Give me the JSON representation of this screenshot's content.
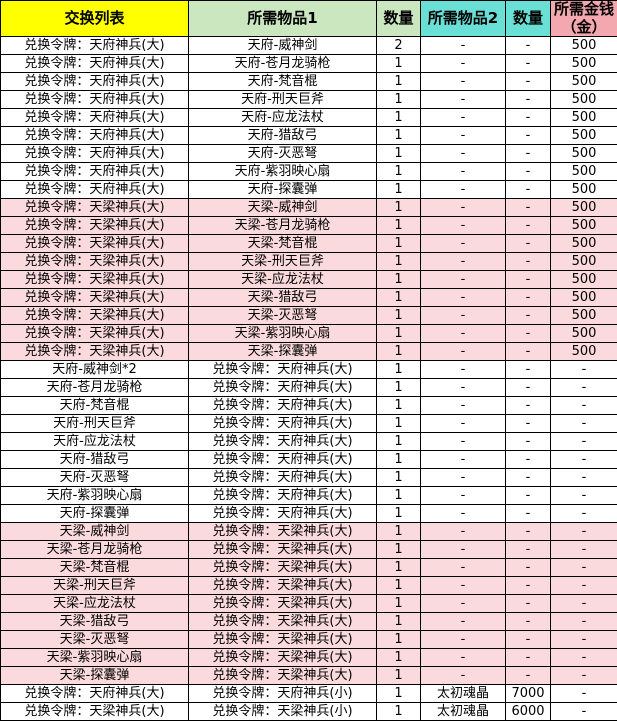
{
  "table": {
    "title": "item-exchange-list",
    "colors": {
      "header_yellow": "#FFFF00",
      "header_green": "#CBE7C0",
      "header_cyan": "#6ADFD6",
      "header_pink": "#F3A7AE",
      "row_pink": "#FBDADD",
      "row_white": "#FFFFFF",
      "grid_border": "#000000",
      "text": "#000000"
    },
    "headers": [
      {
        "label": "交换列表",
        "bg": "header_yellow"
      },
      {
        "label": "所需物品1",
        "bg": "header_green"
      },
      {
        "label": "数量",
        "bg": "header_green"
      },
      {
        "label": "所需物品2",
        "bg": "header_cyan"
      },
      {
        "label": "数量",
        "bg": "header_cyan"
      },
      {
        "label": "所需金钱（金）",
        "bg": "header_pink"
      }
    ],
    "rows": [
      {
        "cells": [
          "兑换令牌：天府神兵(大)",
          "天府-威神剑",
          "2",
          "-",
          "-",
          "500"
        ],
        "highlight": false
      },
      {
        "cells": [
          "兑换令牌：天府神兵(大)",
          "天府-苍月龙骑枪",
          "1",
          "-",
          "-",
          "500"
        ],
        "highlight": false
      },
      {
        "cells": [
          "兑换令牌：天府神兵(大)",
          "天府-梵音棍",
          "1",
          "-",
          "-",
          "500"
        ],
        "highlight": false
      },
      {
        "cells": [
          "兑换令牌：天府神兵(大)",
          "天府-刑天巨斧",
          "1",
          "-",
          "-",
          "500"
        ],
        "highlight": false
      },
      {
        "cells": [
          "兑换令牌：天府神兵(大)",
          "天府-应龙法杖",
          "1",
          "-",
          "-",
          "500"
        ],
        "highlight": false
      },
      {
        "cells": [
          "兑换令牌：天府神兵(大)",
          "天府-猎敌弓",
          "1",
          "-",
          "-",
          "500"
        ],
        "highlight": false
      },
      {
        "cells": [
          "兑换令牌：天府神兵(大)",
          "天府-灭恶弩",
          "1",
          "-",
          "-",
          "500"
        ],
        "highlight": false
      },
      {
        "cells": [
          "兑换令牌：天府神兵(大)",
          "天府-紫羽映心扇",
          "1",
          "-",
          "-",
          "500"
        ],
        "highlight": false
      },
      {
        "cells": [
          "兑换令牌：天府神兵(大)",
          "天府-探囊弹",
          "1",
          "-",
          "-",
          "500"
        ],
        "highlight": false
      },
      {
        "cells": [
          "兑换令牌：天梁神兵(大)",
          "天梁-威神剑",
          "1",
          "-",
          "-",
          "500"
        ],
        "highlight": true
      },
      {
        "cells": [
          "兑换令牌：天梁神兵(大)",
          "天梁-苍月龙骑枪",
          "1",
          "-",
          "-",
          "500"
        ],
        "highlight": true
      },
      {
        "cells": [
          "兑换令牌：天梁神兵(大)",
          "天梁-梵音棍",
          "1",
          "-",
          "-",
          "500"
        ],
        "highlight": true
      },
      {
        "cells": [
          "兑换令牌：天梁神兵(大)",
          "天梁-刑天巨斧",
          "1",
          "-",
          "-",
          "500"
        ],
        "highlight": true
      },
      {
        "cells": [
          "兑换令牌：天梁神兵(大)",
          "天梁-应龙法杖",
          "1",
          "-",
          "-",
          "500"
        ],
        "highlight": true
      },
      {
        "cells": [
          "兑换令牌：天梁神兵(大)",
          "天梁-猎敌弓",
          "1",
          "-",
          "-",
          "500"
        ],
        "highlight": true
      },
      {
        "cells": [
          "兑换令牌：天梁神兵(大)",
          "天梁-灭恶弩",
          "1",
          "-",
          "-",
          "500"
        ],
        "highlight": true
      },
      {
        "cells": [
          "兑换令牌：天梁神兵(大)",
          "天梁-紫羽映心扇",
          "1",
          "-",
          "-",
          "500"
        ],
        "highlight": true
      },
      {
        "cells": [
          "兑换令牌：天梁神兵(大)",
          "天梁-探囊弹",
          "1",
          "-",
          "-",
          "500"
        ],
        "highlight": true
      },
      {
        "cells": [
          "天府-威神剑*2",
          "兑换令牌：天府神兵(大)",
          "1",
          "-",
          "-",
          "-"
        ],
        "highlight": false
      },
      {
        "cells": [
          "天府-苍月龙骑枪",
          "兑换令牌：天府神兵(大)",
          "1",
          "-",
          "-",
          "-"
        ],
        "highlight": false
      },
      {
        "cells": [
          "天府-梵音棍",
          "兑换令牌：天府神兵(大)",
          "1",
          "-",
          "-",
          "-"
        ],
        "highlight": false
      },
      {
        "cells": [
          "天府-刑天巨斧",
          "兑换令牌：天府神兵(大)",
          "1",
          "-",
          "-",
          "-"
        ],
        "highlight": false
      },
      {
        "cells": [
          "天府-应龙法杖",
          "兑换令牌：天府神兵(大)",
          "1",
          "-",
          "-",
          "-"
        ],
        "highlight": false
      },
      {
        "cells": [
          "天府-猎敌弓",
          "兑换令牌：天府神兵(大)",
          "1",
          "-",
          "-",
          "-"
        ],
        "highlight": false
      },
      {
        "cells": [
          "天府-灭恶弩",
          "兑换令牌：天府神兵(大)",
          "1",
          "-",
          "-",
          "-"
        ],
        "highlight": false
      },
      {
        "cells": [
          "天府-紫羽映心扇",
          "兑换令牌：天府神兵(大)",
          "1",
          "-",
          "-",
          "-"
        ],
        "highlight": false
      },
      {
        "cells": [
          "天府-探囊弹",
          "兑换令牌：天府神兵(大)",
          "1",
          "-",
          "-",
          "-"
        ],
        "highlight": false
      },
      {
        "cells": [
          "天梁-威神剑",
          "兑换令牌：天梁神兵(大)",
          "1",
          "-",
          "-",
          "-"
        ],
        "highlight": true
      },
      {
        "cells": [
          "天梁-苍月龙骑枪",
          "兑换令牌：天梁神兵(大)",
          "1",
          "-",
          "-",
          "-"
        ],
        "highlight": true
      },
      {
        "cells": [
          "天梁-梵音棍",
          "兑换令牌：天梁神兵(大)",
          "1",
          "-",
          "-",
          "-"
        ],
        "highlight": true
      },
      {
        "cells": [
          "天梁-刑天巨斧",
          "兑换令牌：天梁神兵(大)",
          "1",
          "-",
          "-",
          "-"
        ],
        "highlight": true
      },
      {
        "cells": [
          "天梁-应龙法杖",
          "兑换令牌：天梁神兵(大)",
          "1",
          "-",
          "-",
          "-"
        ],
        "highlight": true
      },
      {
        "cells": [
          "天梁-猎敌弓",
          "兑换令牌：天梁神兵(大)",
          "1",
          "-",
          "-",
          "-"
        ],
        "highlight": true
      },
      {
        "cells": [
          "天梁-灭恶弩",
          "兑换令牌：天梁神兵(大)",
          "1",
          "-",
          "-",
          "-"
        ],
        "highlight": true
      },
      {
        "cells": [
          "天梁-紫羽映心扇",
          "兑换令牌：天梁神兵(大)",
          "1",
          "-",
          "-",
          "-"
        ],
        "highlight": true
      },
      {
        "cells": [
          "天梁-探囊弹",
          "兑换令牌：天梁神兵(大)",
          "1",
          "-",
          "-",
          "-"
        ],
        "highlight": true
      },
      {
        "cells": [
          "兑换令牌：天府神兵(大)",
          "兑换令牌：天府神兵(小)",
          "1",
          "太初魂晶",
          "7000",
          "-"
        ],
        "highlight": false
      },
      {
        "cells": [
          "兑换令牌：天梁神兵(大)",
          "兑换令牌：天梁神兵(小)",
          "1",
          "太初魂晶",
          "6000",
          "-"
        ],
        "highlight": false
      }
    ],
    "column_names": [
      "exchange-list",
      "required-item-1",
      "quantity-1",
      "required-item-2",
      "quantity-2",
      "required-gold"
    ]
  }
}
